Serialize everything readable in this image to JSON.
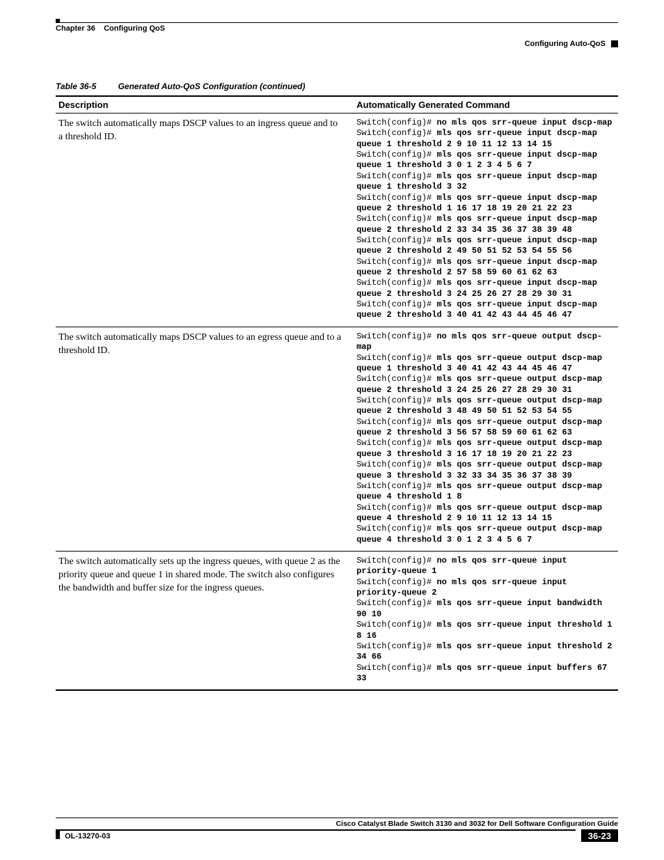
{
  "header": {
    "chapter_label": "Chapter 36",
    "chapter_title": "Configuring QoS",
    "section_title": "Configuring Auto-QoS"
  },
  "table": {
    "number": "Table 36-5",
    "title": "Generated Auto-QoS Configuration (continued)",
    "columns": {
      "col1": "Description",
      "col2": "Automatically Generated Command"
    },
    "font": {
      "desc_family": "Times",
      "cmd_family": "Courier",
      "cmd_size_pt": 9
    },
    "colors": {
      "text": "#000000",
      "bg": "#ffffff",
      "rule": "#000000"
    },
    "rows": [
      {
        "desc": "The switch automatically maps DSCP values to an ingress queue and to a threshold ID.",
        "cmds": [
          {
            "prompt": "Switch(config)# ",
            "bold": "no mls qos srr-queue input dscp-map"
          },
          {
            "prompt": "Switch(config)# ",
            "bold": "mls qos srr-queue input dscp-map queue 1 threshold 2 9 10 11 12 13 14 15"
          },
          {
            "prompt": "Switch(config)# ",
            "bold": "mls qos srr-queue input dscp-map queue 1 threshold 3 0 1 2 3 4 5 6 7"
          },
          {
            "prompt": "Switch(config)# ",
            "bold": "mls qos srr-queue input dscp-map queue 1 threshold 3 32"
          },
          {
            "prompt": "Switch(config)# ",
            "bold": "mls qos srr-queue input dscp-map queue 2 threshold 1 16 17 18 19 20 21 22 23"
          },
          {
            "prompt": "Switch(config)# ",
            "bold": "mls qos srr-queue input dscp-map queue 2 threshold 2 33 34 35 36 37 38 39 48"
          },
          {
            "prompt": "Switch(config)# ",
            "bold": "mls qos srr-queue input dscp-map queue 2 threshold 2 49 50 51 52 53 54 55 56"
          },
          {
            "prompt": "Switch(config)# ",
            "bold": "mls qos srr-queue input dscp-map queue 2 threshold 2 57 58 59 60 61 62 63"
          },
          {
            "prompt": "Switch(config)# ",
            "bold": "mls qos srr-queue input dscp-map queue 2 threshold 3 24 25 26 27 28 29 30 31"
          },
          {
            "prompt": "Switch(config)# ",
            "bold": "mls qos srr-queue input dscp-map queue 2 threshold 3 40 41 42 43 44 45 46 47"
          }
        ]
      },
      {
        "desc": "The switch automatically maps DSCP values to an egress queue and to a threshold ID.",
        "cmds": [
          {
            "prompt": "Switch(config)# ",
            "bold": "no mls qos srr-queue output dscp-map"
          },
          {
            "prompt": "Switch(config)# ",
            "bold": "mls qos srr-queue output dscp-map queue 1 threshold 3 40 41 42 43 44 45 46 47"
          },
          {
            "prompt": "Switch(config)# ",
            "bold": "mls qos srr-queue output dscp-map queue 2 threshold 3 24 25 26 27 28 29 30 31"
          },
          {
            "prompt": "Switch(config)# ",
            "bold": "mls qos srr-queue output dscp-map queue 2 threshold 3 48 49 50 51 52 53 54 55"
          },
          {
            "prompt": "Switch(config)# ",
            "bold": "mls qos srr-queue output dscp-map queue 2 threshold 3 56 57 58 59 60 61 62 63"
          },
          {
            "prompt": "Switch(config)# ",
            "bold": "mls qos srr-queue output dscp-map queue 3 threshold 3 16 17 18 19 20 21 22 23"
          },
          {
            "prompt": "Switch(config)# ",
            "bold": "mls qos srr-queue output dscp-map queue 3 threshold 3 32 33 34 35 36 37 38 39"
          },
          {
            "prompt": "Switch(config)# ",
            "bold": "mls qos srr-queue output dscp-map queue 4 threshold 1 8"
          },
          {
            "prompt": "Switch(config)# ",
            "bold": "mls qos srr-queue output dscp-map queue 4 threshold 2 9 10 11 12 13 14 15"
          },
          {
            "prompt": "Switch(config)# ",
            "bold": "mls qos srr-queue output dscp-map queue 4 threshold 3 0 1 2 3 4 5 6 7"
          }
        ]
      },
      {
        "desc": "The switch automatically sets up the ingress queues, with queue 2 as the priority queue and queue 1 in shared mode. The switch also configures the bandwidth and buffer size for the ingress queues.",
        "cmds": [
          {
            "prompt": "Switch(config)# ",
            "bold": "no mls qos srr-queue input priority-queue 1"
          },
          {
            "prompt": "Switch(config)# ",
            "bold": "no mls qos srr-queue input priority-queue 2"
          },
          {
            "prompt": "Switch(config)# ",
            "bold": "mls qos srr-queue input bandwidth 90 10"
          },
          {
            "prompt": "Switch(config)# ",
            "bold": "mls qos srr-queue input threshold 1 8 16"
          },
          {
            "prompt": "Switch(config)# ",
            "bold": "mls qos srr-queue input threshold 2 34 66"
          },
          {
            "prompt": "Switch(config)# ",
            "bold": "mls qos srr-queue input buffers 67 33"
          }
        ]
      }
    ]
  },
  "footer": {
    "guide_title": "Cisco Catalyst Blade Switch 3130 and 3032 for Dell Software Configuration Guide",
    "doc_id": "OL-13270-03",
    "page_num": "36-23"
  }
}
